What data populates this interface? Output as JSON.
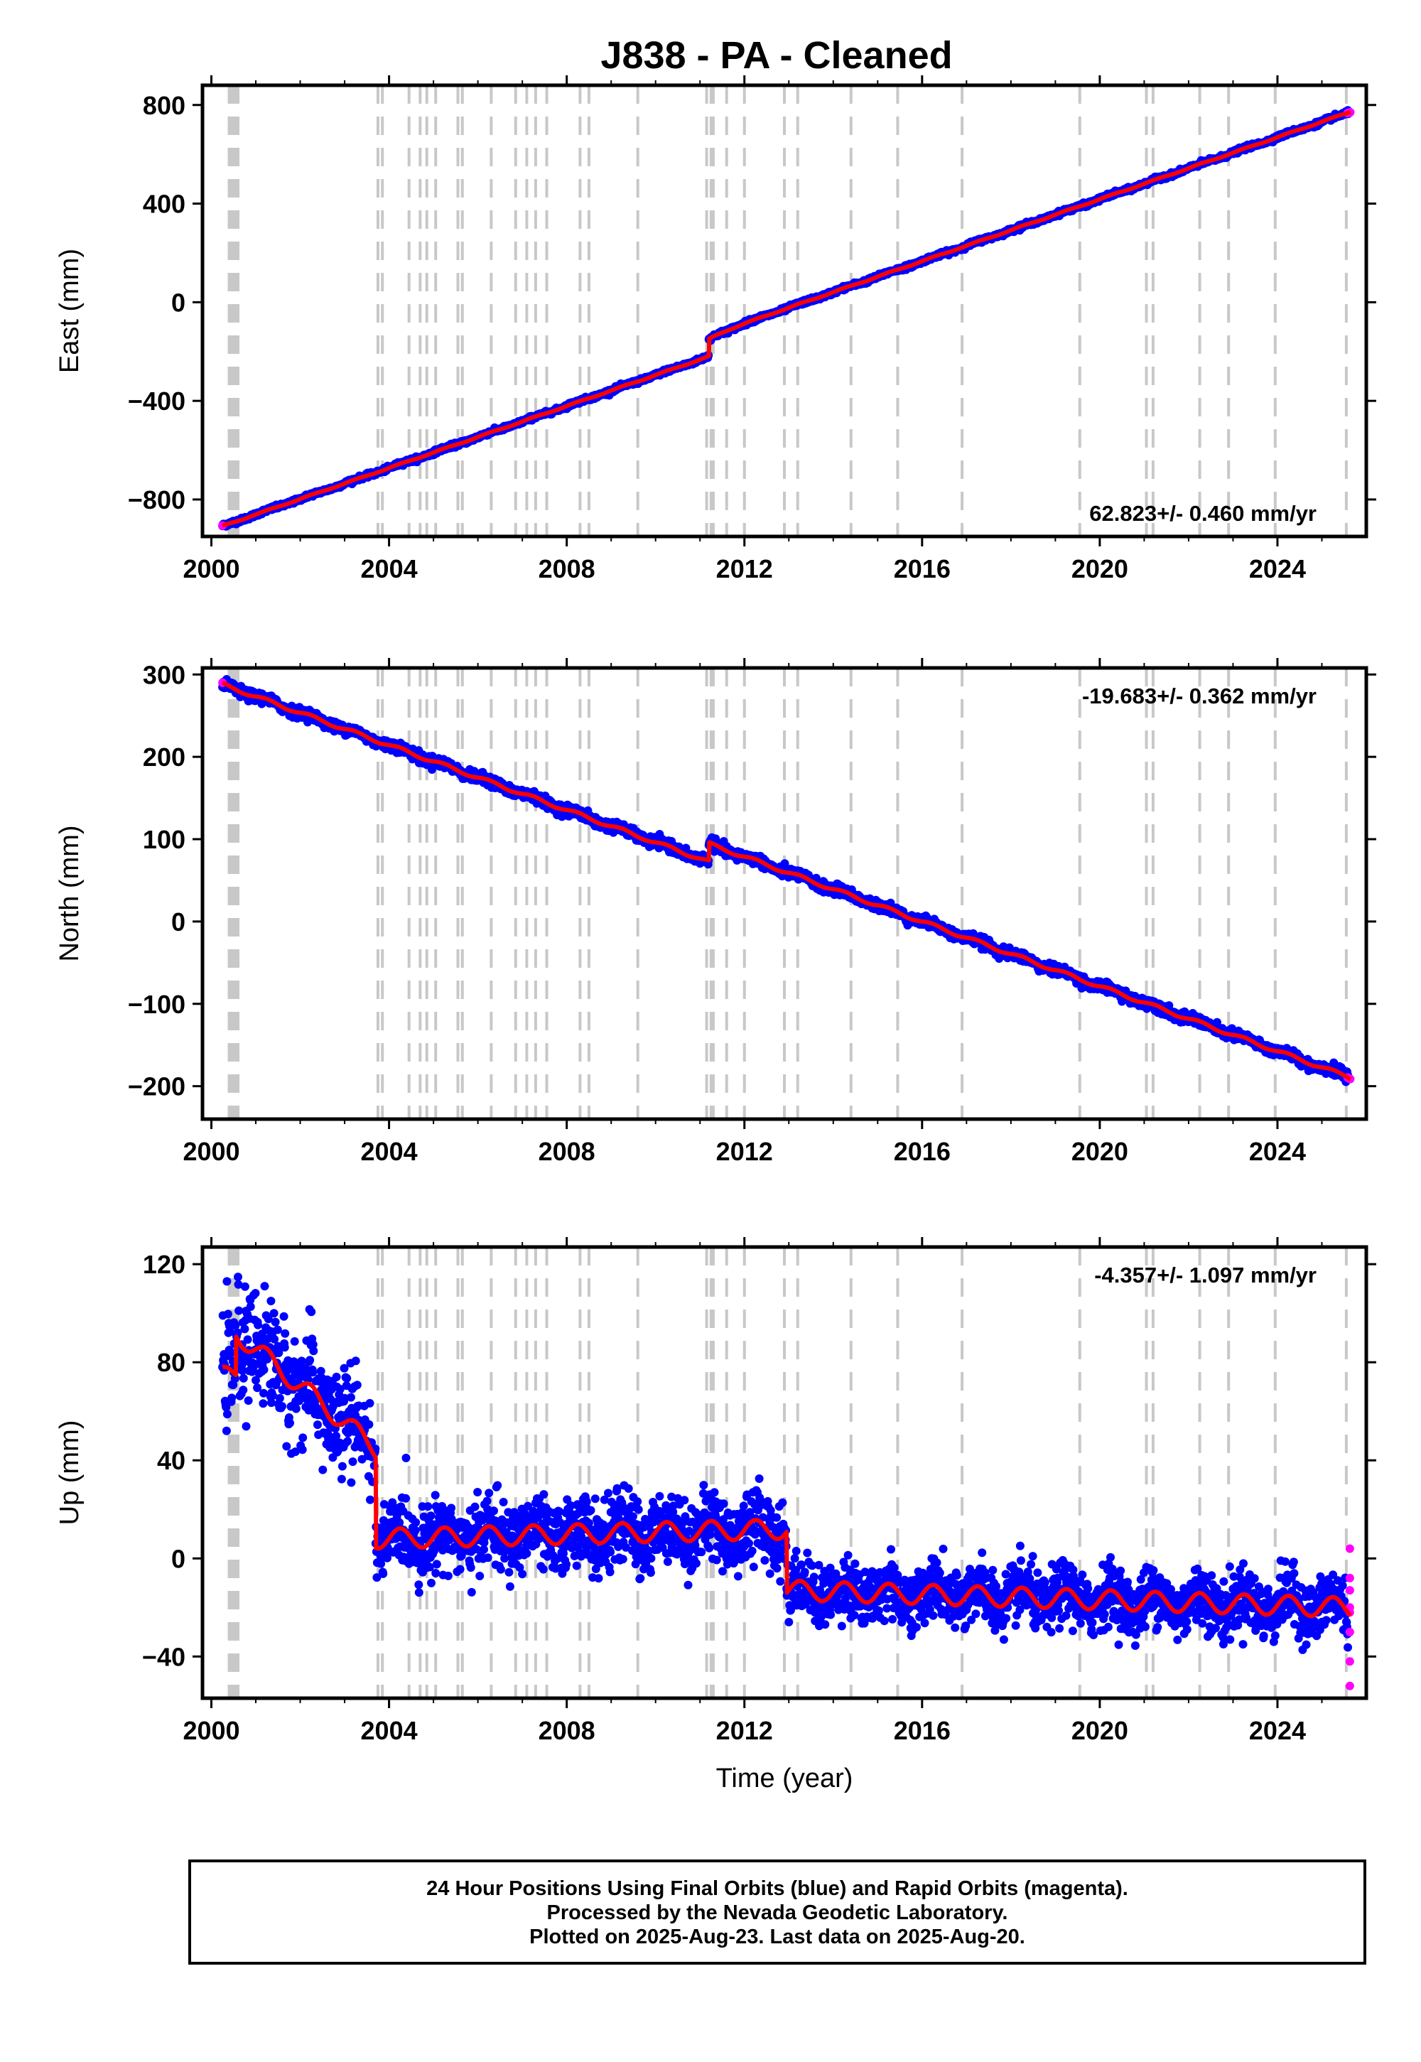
{
  "title": "J838  - PA - Cleaned",
  "colors": {
    "final_points": "#0000ff",
    "rapid_points": "#ff00ff",
    "model_line": "#ff0000",
    "event_lines": "#c8c8c8",
    "axes": "#000000"
  },
  "chart_data": [
    {
      "type": "scatter",
      "component": "east",
      "ylabel": "East (mm)",
      "xlabel": "",
      "xlim": [
        1999.8,
        2026.0
      ],
      "ylim": [
        -950,
        880
      ],
      "xticks": [
        2000,
        2004,
        2008,
        2012,
        2016,
        2020,
        2024
      ],
      "yticks": [
        -800,
        -400,
        0,
        400,
        800
      ],
      "xtick_labels": [
        "2000",
        "2004",
        "2008",
        "2012",
        "2016",
        "2020",
        "2024"
      ],
      "ytick_labels": [
        "−800",
        "−400",
        "0",
        "400",
        "800"
      ],
      "rate_label": "62.823+/- 0.460 mm/yr",
      "rate_position": "bottom-right",
      "model": {
        "t0": 2000.25,
        "v0": -908,
        "rate": 62.823,
        "offset_at": 2011.2,
        "offset": 70,
        "relaxation": 15,
        "seasonal": 2
      },
      "noise": 4
    },
    {
      "type": "scatter",
      "component": "north",
      "ylabel": "North (mm)",
      "xlabel": "",
      "xlim": [
        1999.8,
        2026.0
      ],
      "ylim": [
        -240,
        308
      ],
      "xticks": [
        2000,
        2004,
        2008,
        2012,
        2016,
        2020,
        2024
      ],
      "yticks": [
        -200,
        -100,
        0,
        100,
        200,
        300
      ],
      "xtick_labels": [
        "2000",
        "2004",
        "2008",
        "2012",
        "2016",
        "2020",
        "2024"
      ],
      "ytick_labels": [
        "−200",
        "−100",
        "0",
        "100",
        "200",
        "300"
      ],
      "rate_label": "-19.683+/- 0.362 mm/yr",
      "rate_position": "top-right",
      "model": {
        "t0": 2000.25,
        "v0": 288,
        "rate": -19.683,
        "offset_at": 2011.2,
        "offset": 22,
        "relaxation": 0,
        "seasonal": 2
      },
      "noise": 3
    },
    {
      "type": "scatter",
      "component": "up",
      "ylabel": "Up (mm)",
      "xlabel": "Time (year)",
      "xlim": [
        1999.8,
        2026.0
      ],
      "ylim": [
        -57,
        127
      ],
      "xticks": [
        2000,
        2004,
        2008,
        2012,
        2016,
        2020,
        2024
      ],
      "yticks": [
        -40,
        0,
        40,
        80,
        120
      ],
      "xtick_labels": [
        "2000",
        "2004",
        "2008",
        "2012",
        "2016",
        "2020",
        "2024"
      ],
      "ytick_labels": [
        "−40",
        "0",
        "40",
        "80",
        "120"
      ],
      "rate_label": "-4.357+/- 1.097 mm/yr",
      "rate_position": "top-right",
      "model_segments": [
        {
          "from": 2000.25,
          "to": 2000.55,
          "start": 74,
          "end": 76
        },
        {
          "from": 2000.55,
          "to": 2003.7,
          "start": 92,
          "end": 45
        },
        {
          "from": 2003.7,
          "to": 2012.95,
          "start": 8,
          "end": 12
        },
        {
          "from": 2012.95,
          "to": 2025.65,
          "start": -13,
          "end": -20
        }
      ],
      "seasonal": 4,
      "noise_segments": [
        [
          2000.25,
          2003.3,
          11
        ],
        [
          2003.3,
          2012.95,
          7
        ],
        [
          2012.95,
          2025.65,
          6
        ]
      ],
      "rapid_points": [
        [
          2025.63,
          4
        ],
        [
          2025.63,
          -8
        ],
        [
          2025.63,
          -13
        ],
        [
          2025.63,
          -22
        ],
        [
          2025.63,
          -30
        ],
        [
          2025.63,
          -42
        ],
        [
          2025.63,
          -52
        ],
        [
          2025.63,
          -20
        ]
      ]
    }
  ],
  "event_lines": [
    2000.4,
    2000.45,
    2000.5,
    2000.55,
    2000.6,
    2003.75,
    2003.85,
    2004.45,
    2004.7,
    2004.85,
    2005.05,
    2005.55,
    2005.65,
    2006.3,
    2006.85,
    2007.1,
    2007.3,
    2007.55,
    2008.3,
    2008.5,
    2009.6,
    2011.15,
    2011.25,
    2011.3,
    2011.6,
    2012.0,
    2012.9,
    2013.2,
    2014.4,
    2015.45,
    2016.9,
    2019.55,
    2021.05,
    2021.2,
    2022.25,
    2022.9,
    2023.95,
    2025.55
  ],
  "footer": {
    "line1": "24 Hour Positions Using Final Orbits (blue) and Rapid Orbits (magenta).",
    "line2": "Processed by the Nevada Geodetic Laboratory.",
    "line3": "Plotted on 2025-Aug-23. Last data on 2025-Aug-20."
  }
}
